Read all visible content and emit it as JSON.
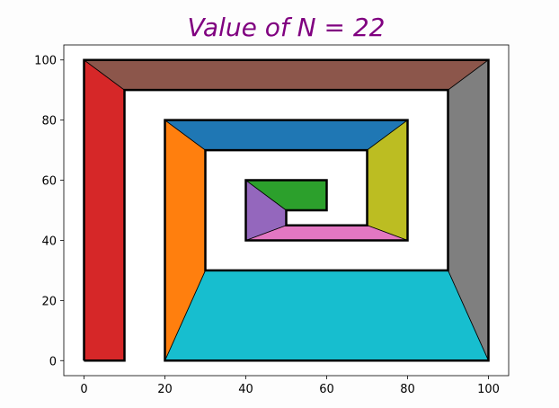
{
  "chart_data": {
    "type": "area",
    "title": "Value of N = 22",
    "title_color": "#800080",
    "xlabel": "",
    "ylabel": "",
    "xlim": [
      -5,
      105
    ],
    "ylim": [
      -5,
      105
    ],
    "x_ticks": [
      0,
      20,
      40,
      60,
      80,
      100
    ],
    "y_ticks": [
      0,
      20,
      40,
      60,
      80,
      100
    ],
    "grid": false,
    "polygons": [
      {
        "color": "#d62728",
        "points": [
          [
            0,
            0
          ],
          [
            0,
            100
          ],
          [
            10,
            90
          ],
          [
            10,
            0
          ]
        ]
      },
      {
        "color": "#8c564b",
        "points": [
          [
            0,
            100
          ],
          [
            100,
            100
          ],
          [
            90,
            90
          ],
          [
            10,
            90
          ]
        ]
      },
      {
        "color": "#7f7f7f",
        "points": [
          [
            100,
            100
          ],
          [
            100,
            0
          ],
          [
            90,
            30
          ],
          [
            90,
            90
          ]
        ]
      },
      {
        "color": "#17becf",
        "points": [
          [
            100,
            0
          ],
          [
            20,
            0
          ],
          [
            30,
            30
          ],
          [
            90,
            30
          ]
        ]
      },
      {
        "color": "#ff7f0e",
        "points": [
          [
            20,
            0
          ],
          [
            20,
            80
          ],
          [
            30,
            70
          ],
          [
            30,
            30
          ]
        ]
      },
      {
        "color": "#1f77b4",
        "points": [
          [
            20,
            80
          ],
          [
            80,
            80
          ],
          [
            70,
            70
          ],
          [
            30,
            70
          ]
        ]
      },
      {
        "color": "#bcbd22",
        "points": [
          [
            80,
            80
          ],
          [
            80,
            40
          ],
          [
            70,
            45
          ],
          [
            70,
            70
          ]
        ]
      },
      {
        "color": "#e377c2",
        "points": [
          [
            80,
            40
          ],
          [
            40,
            40
          ],
          [
            50,
            45
          ],
          [
            70,
            45
          ]
        ]
      },
      {
        "color": "#9467bd",
        "points": [
          [
            40,
            40
          ],
          [
            40,
            60
          ],
          [
            50,
            50
          ],
          [
            50,
            45
          ]
        ]
      },
      {
        "color": "#2ca02c",
        "points": [
          [
            40,
            60
          ],
          [
            60,
            60
          ],
          [
            60,
            50
          ],
          [
            50,
            50
          ]
        ]
      }
    ],
    "spiral_path": [
      [
        0,
        0
      ],
      [
        0,
        100
      ],
      [
        100,
        100
      ],
      [
        100,
        0
      ],
      [
        20,
        0
      ],
      [
        20,
        80
      ],
      [
        80,
        80
      ],
      [
        80,
        40
      ],
      [
        40,
        40
      ],
      [
        40,
        60
      ],
      [
        60,
        60
      ],
      [
        60,
        50
      ],
      [
        50,
        50
      ],
      [
        50,
        45
      ],
      [
        70,
        45
      ],
      [
        70,
        70
      ],
      [
        30,
        70
      ],
      [
        30,
        30
      ],
      [
        90,
        30
      ],
      [
        90,
        90
      ],
      [
        10,
        90
      ],
      [
        10,
        0
      ],
      [
        0,
        0
      ]
    ]
  }
}
